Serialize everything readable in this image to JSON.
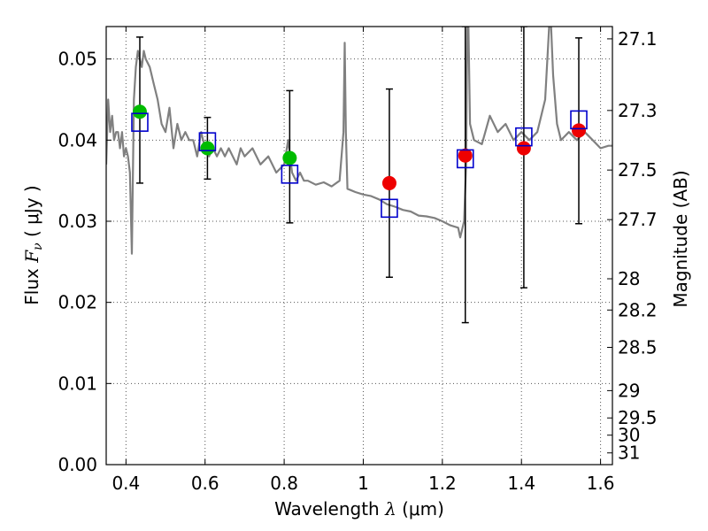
{
  "chart_data": {
    "type": "scatter",
    "title": "",
    "xlabel": {
      "prefix": "Wavelength  ",
      "symbol": "λ",
      "units": " (μm)"
    },
    "ylabel": {
      "prefix": "Flux  ",
      "symbol": "F",
      "subscript": "ν",
      "units": "  ( μJy )"
    },
    "y2label": "Magnitude (AB)",
    "xlim": [
      0.35,
      1.63
    ],
    "ylim": [
      0.0,
      0.054
    ],
    "x_ticks": [
      0.4,
      0.6,
      0.8,
      1.0,
      1.2,
      1.4,
      1.6
    ],
    "x_tick_labels": [
      "0.4",
      "0.6",
      "0.8",
      "1",
      "1.2",
      "1.4",
      "1.6"
    ],
    "y_ticks": [
      0.0,
      0.01,
      0.02,
      0.03,
      0.04,
      0.05
    ],
    "y_tick_labels": [
      "0.00",
      "0.01",
      "0.02",
      "0.03",
      "0.04",
      "0.05"
    ],
    "y2_ticks": [
      27.1,
      27.3,
      27.5,
      27.7,
      28,
      28.2,
      28.5,
      29,
      29.5,
      30,
      31
    ],
    "y2_tick_labels": [
      "27.1",
      "27.3",
      "27.5",
      "27.7",
      "28",
      "28.2",
      "28.5",
      "29",
      "29.5",
      "30",
      "31"
    ],
    "grid": true,
    "colors": {
      "model": "#808080",
      "green": "#00bb00",
      "red": "#ee0000",
      "box": "#0000cc",
      "error": "#000000"
    },
    "series": [
      {
        "marker": "circle",
        "color": "green",
        "points": [
          {
            "x": 0.435,
            "y": 0.0435,
            "ylo": 0.0347,
            "yhi": 0.0527
          },
          {
            "x": 0.606,
            "y": 0.039,
            "ylo": 0.0352,
            "yhi": 0.0428
          },
          {
            "x": 0.814,
            "y": 0.0378,
            "ylo": 0.0298,
            "yhi": 0.0461
          }
        ]
      },
      {
        "marker": "circle",
        "color": "red",
        "points": [
          {
            "x": 1.066,
            "y": 0.0347,
            "ylo": 0.0231,
            "yhi": 0.0463
          },
          {
            "x": 1.258,
            "y": 0.0381,
            "ylo": 0.0175,
            "yhi": 0.054
          },
          {
            "x": 1.406,
            "y": 0.039,
            "ylo": 0.0218,
            "yhi": 0.054
          },
          {
            "x": 1.545,
            "y": 0.0412,
            "ylo": 0.0297,
            "yhi": 0.0526
          }
        ]
      },
      {
        "marker": "square",
        "color": "box",
        "points": [
          {
            "x": 0.435,
            "y": 0.0422
          },
          {
            "x": 0.606,
            "y": 0.0398
          },
          {
            "x": 0.814,
            "y": 0.0358
          },
          {
            "x": 1.066,
            "y": 0.0316
          },
          {
            "x": 1.258,
            "y": 0.0377
          },
          {
            "x": 1.406,
            "y": 0.0404
          },
          {
            "x": 1.545,
            "y": 0.0425
          }
        ]
      },
      {
        "type": "line",
        "color": "model",
        "x": [
          0.35,
          0.355,
          0.36,
          0.365,
          0.37,
          0.375,
          0.38,
          0.385,
          0.39,
          0.395,
          0.4,
          0.405,
          0.41,
          0.415,
          0.42,
          0.425,
          0.43,
          0.435,
          0.44,
          0.445,
          0.45,
          0.46,
          0.47,
          0.48,
          0.49,
          0.5,
          0.51,
          0.52,
          0.53,
          0.54,
          0.55,
          0.56,
          0.57,
          0.58,
          0.59,
          0.6,
          0.61,
          0.62,
          0.63,
          0.64,
          0.65,
          0.66,
          0.67,
          0.68,
          0.69,
          0.7,
          0.72,
          0.74,
          0.76,
          0.78,
          0.8,
          0.81,
          0.82,
          0.83,
          0.84,
          0.85,
          0.86,
          0.88,
          0.9,
          0.92,
          0.94,
          0.95,
          0.953,
          0.956,
          0.96,
          0.98,
          1.0,
          1.02,
          1.04,
          1.06,
          1.08,
          1.1,
          1.12,
          1.14,
          1.16,
          1.18,
          1.2,
          1.22,
          1.24,
          1.245,
          1.25,
          1.255,
          1.26,
          1.263,
          1.266,
          1.27,
          1.28,
          1.3,
          1.32,
          1.34,
          1.36,
          1.38,
          1.4,
          1.42,
          1.44,
          1.46,
          1.47,
          1.475,
          1.48,
          1.49,
          1.5,
          1.52,
          1.54,
          1.56,
          1.58,
          1.6,
          1.62,
          1.63
        ],
        "y": [
          0.037,
          0.045,
          0.041,
          0.043,
          0.04,
          0.041,
          0.041,
          0.039,
          0.041,
          0.038,
          0.039,
          0.038,
          0.036,
          0.026,
          0.045,
          0.049,
          0.051,
          0.05,
          0.049,
          0.051,
          0.05,
          0.049,
          0.047,
          0.045,
          0.042,
          0.041,
          0.044,
          0.039,
          0.042,
          0.04,
          0.041,
          0.04,
          0.04,
          0.038,
          0.041,
          0.039,
          0.038,
          0.039,
          0.038,
          0.039,
          0.038,
          0.039,
          0.038,
          0.037,
          0.039,
          0.038,
          0.039,
          0.037,
          0.038,
          0.036,
          0.037,
          0.04,
          0.036,
          0.035,
          0.036,
          0.035,
          0.035,
          0.0345,
          0.0348,
          0.0343,
          0.035,
          0.041,
          0.052,
          0.041,
          0.034,
          0.0336,
          0.0333,
          0.0331,
          0.0327,
          0.0321,
          0.0318,
          0.0314,
          0.0312,
          0.0307,
          0.0306,
          0.0304,
          0.03,
          0.0295,
          0.0292,
          0.028,
          0.029,
          0.03,
          0.037,
          0.054,
          0.054,
          0.042,
          0.04,
          0.0395,
          0.043,
          0.041,
          0.042,
          0.04,
          0.041,
          0.04,
          0.041,
          0.045,
          0.054,
          0.054,
          0.048,
          0.042,
          0.04,
          0.041,
          0.04,
          0.041,
          0.04,
          0.039,
          0.0393,
          0.0393
        ]
      }
    ]
  }
}
